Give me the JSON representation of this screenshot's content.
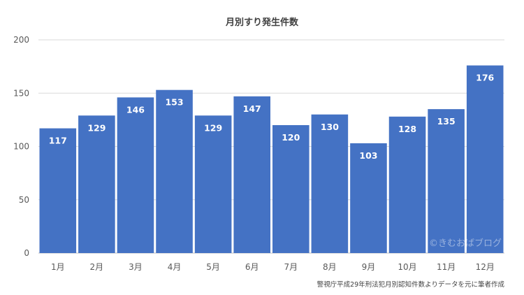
{
  "chart_data": {
    "type": "bar",
    "title": "月別すり発生件数",
    "categories": [
      "1月",
      "2月",
      "3月",
      "4月",
      "5月",
      "6月",
      "7月",
      "8月",
      "9月",
      "10月",
      "11月",
      "12月"
    ],
    "values": [
      117,
      129,
      146,
      153,
      129,
      147,
      120,
      130,
      103,
      128,
      135,
      176
    ],
    "ylim": [
      0,
      200
    ],
    "yticks": [
      0,
      50,
      100,
      150,
      200
    ],
    "grid": true,
    "legend": "none",
    "bar_color": "#4472c4"
  },
  "watermark": "©きむおばブログ",
  "source": "警視庁平成29年刑法犯月別認知件数よりデータを元に筆者作成"
}
